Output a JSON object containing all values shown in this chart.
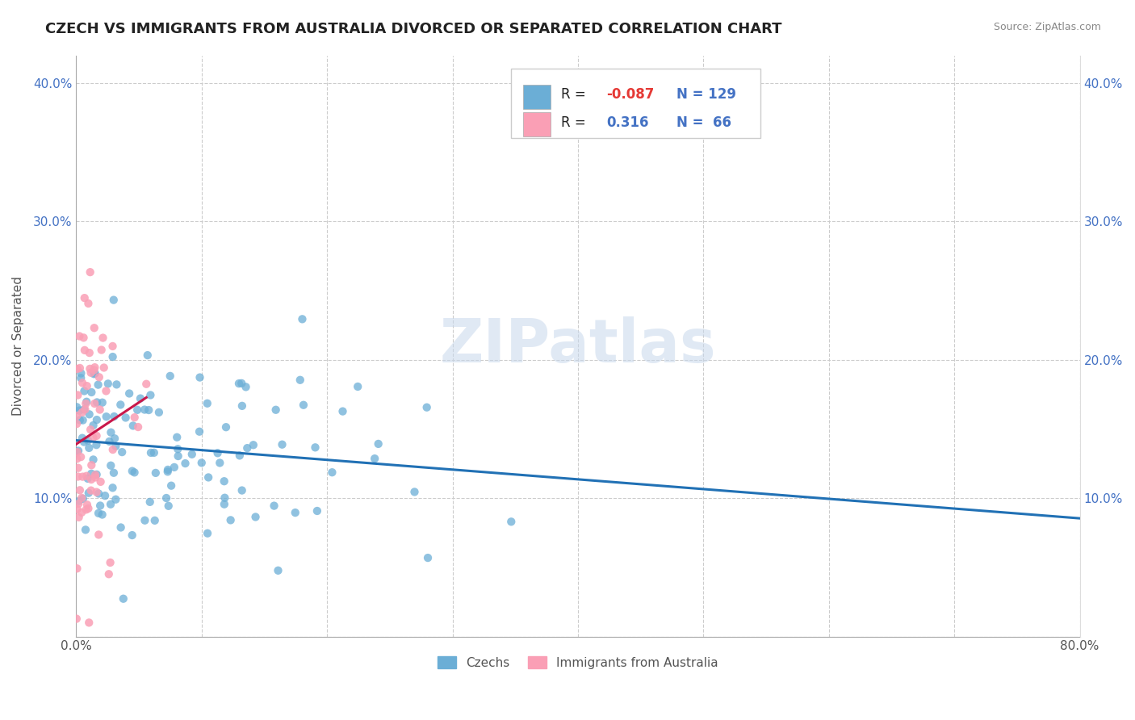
{
  "title": "CZECH VS IMMIGRANTS FROM AUSTRALIA DIVORCED OR SEPARATED CORRELATION CHART",
  "source": "Source: ZipAtlas.com",
  "ylabel": "Divorced or Separated",
  "xlim": [
    0.0,
    0.8
  ],
  "ylim": [
    0.0,
    0.42
  ],
  "xticks": [
    0.0,
    0.1,
    0.2,
    0.3,
    0.4,
    0.5,
    0.6,
    0.7,
    0.8
  ],
  "xtick_labels": [
    "0.0%",
    "",
    "",
    "",
    "",
    "",
    "",
    "",
    "80.0%"
  ],
  "yticks": [
    0.0,
    0.1,
    0.2,
    0.3,
    0.4
  ],
  "ytick_labels": [
    "",
    "10.0%",
    "20.0%",
    "30.0%",
    "40.0%"
  ],
  "legend_blue_label": "Czechs",
  "legend_pink_label": "Immigrants from Australia",
  "R_blue": -0.087,
  "N_blue": 129,
  "R_pink": 0.316,
  "N_pink": 66,
  "blue_color": "#6baed6",
  "pink_color": "#fa9fb5",
  "blue_line_color": "#2171b5",
  "pink_line_color": "#c9174a",
  "watermark": "ZIPatlas",
  "title_fontsize": 13,
  "label_fontsize": 11,
  "tick_fontsize": 11
}
